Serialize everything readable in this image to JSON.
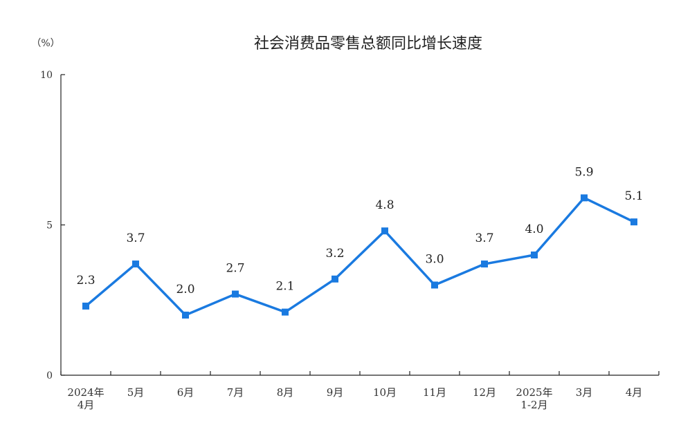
{
  "chart_data": {
    "type": "line",
    "title": "社会消费品零售总额同比增长速度",
    "ylabel": "（%）",
    "ylim": [
      0,
      10
    ],
    "yticks": [
      "0",
      "5",
      "10"
    ],
    "categories": [
      "2024年\n4月",
      "5月",
      "6月",
      "7月",
      "8月",
      "9月",
      "10月",
      "11月",
      "12月",
      "2025年\n1-2月",
      "3月",
      "4月"
    ],
    "series": [
      {
        "values": [
          2.3,
          3.7,
          2.0,
          2.7,
          2.1,
          3.2,
          4.8,
          3.0,
          3.7,
          4.0,
          5.9,
          5.1
        ],
        "labels": [
          "2.3",
          "3.7",
          "2.0",
          "2.7",
          "2.1",
          "3.2",
          "4.8",
          "3.0",
          "3.7",
          "4.0",
          "5.9",
          "5.1"
        ],
        "color": "#1a7ae0"
      }
    ],
    "grid": false,
    "legend": "none"
  }
}
